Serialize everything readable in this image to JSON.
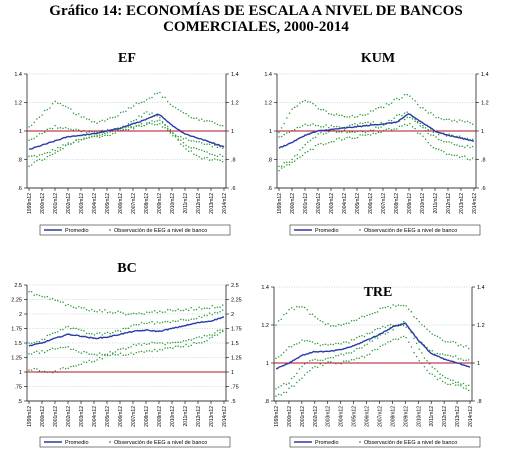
{
  "figure": {
    "title_line1": "Gráfico 14: ECONOMÍAS DE ESCALA A NIVEL DE BANCOS",
    "title_line2": "COMERCIALES, 2000-2014"
  },
  "colors": {
    "average_line": "#2b3aa8",
    "bank_points": "#2e9a3a",
    "reference_line": "#b0102a",
    "grid": "#9fb3c8",
    "axis": "#000000"
  },
  "chart_data": [
    {
      "type": "line",
      "title": "EF",
      "ylim": [
        0.6,
        1.4
      ],
      "y_ticks": [
        0.6,
        0.8,
        1,
        1.2,
        1.4
      ],
      "y_tick_labels": [
        ".6",
        ".8",
        "1",
        "1.2",
        "1.4"
      ],
      "reference_y": 1,
      "x_tick_labels": [
        "1999m12",
        "2000m12",
        "2001m12",
        "2002m12",
        "2003m12",
        "2004m12",
        "2005m12",
        "2006m12",
        "2007m12",
        "2008m12",
        "2009m12",
        "2010m12",
        "2011m12",
        "2012m12",
        "2013m12",
        "2014m12"
      ],
      "legend": [
        "Promedio",
        "Observación de EEG a nivel de banco"
      ],
      "series": [
        {
          "name": "Promedio",
          "values": [
            0.87,
            0.9,
            0.93,
            0.96,
            0.97,
            0.98,
            1.0,
            1.02,
            1.05,
            1.08,
            1.12,
            1.04,
            0.98,
            0.95,
            0.92,
            0.89
          ]
        },
        {
          "name": "Observación de EEG a nivel de banco",
          "values": [
            0.82,
            0.83,
            0.87,
            0.91,
            0.94,
            0.96,
            0.99,
            1.02,
            1.07,
            1.13,
            1.1,
            1.0,
            0.9,
            0.87,
            0.84,
            0.82
          ]
        },
        {
          "name": "Observación de EEG a nivel de banco",
          "values": [
            0.93,
            0.99,
            1.03,
            1.02,
            1.0,
            0.99,
            1.0,
            1.01,
            1.03,
            1.05,
            1.05,
            0.98,
            0.95,
            0.92,
            0.9,
            0.88
          ]
        },
        {
          "name": "Observación de EEG a nivel de banco",
          "values": [
            1.02,
            1.12,
            1.2,
            1.16,
            1.1,
            1.06,
            1.08,
            1.12,
            1.18,
            1.22,
            1.27,
            1.18,
            1.12,
            1.08,
            1.06,
            1.04
          ]
        },
        {
          "name": "Observación de EEG a nivel de banco",
          "values": [
            0.76,
            0.8,
            0.84,
            0.9,
            0.94,
            0.96,
            0.97,
            1.0,
            1.02,
            1.05,
            1.08,
            0.98,
            0.88,
            0.82,
            0.8,
            0.78
          ]
        }
      ]
    },
    {
      "type": "line",
      "title": "KUM",
      "ylim": [
        0.6,
        1.4
      ],
      "y_ticks": [
        0.6,
        0.8,
        1,
        1.2,
        1.4
      ],
      "y_tick_labels": [
        ".6",
        ".8",
        "1",
        "1.2",
        "1.4"
      ],
      "reference_y": 1,
      "x_tick_labels": [
        "1999m12",
        "2000m12",
        "2001m12",
        "2002m12",
        "2003m12",
        "2004m12",
        "2005m12",
        "2006m12",
        "2007m12",
        "2008m12",
        "2009m12",
        "2010m12",
        "2011m12",
        "2012m12",
        "2013m12",
        "2014m12"
      ],
      "legend": [
        "Promedio",
        "Observación de EEG a nivel de banco"
      ],
      "series": [
        {
          "name": "Promedio",
          "values": [
            0.88,
            0.92,
            0.97,
            1.0,
            1.01,
            1.02,
            1.03,
            1.04,
            1.05,
            1.06,
            1.12,
            1.06,
            1.0,
            0.97,
            0.95,
            0.93
          ]
        },
        {
          "name": "Observación de EEG a nivel de banco",
          "values": [
            0.75,
            0.8,
            0.9,
            0.98,
            1.0,
            1.0,
            0.99,
            1.0,
            1.04,
            1.1,
            1.13,
            1.02,
            0.96,
            0.92,
            0.9,
            0.88
          ]
        },
        {
          "name": "Observación de EEG a nivel de banco",
          "values": [
            0.95,
            1.0,
            1.04,
            1.04,
            1.03,
            1.03,
            1.05,
            1.06,
            1.05,
            1.06,
            1.1,
            1.04,
            0.99,
            0.97,
            0.96,
            0.94
          ]
        },
        {
          "name": "Observación de EEG a nivel de banco",
          "values": [
            1.0,
            1.15,
            1.22,
            1.16,
            1.12,
            1.1,
            1.1,
            1.13,
            1.17,
            1.22,
            1.26,
            1.16,
            1.1,
            1.08,
            1.07,
            1.05
          ]
        },
        {
          "name": "Observación de EEG a nivel de banco",
          "values": [
            0.72,
            0.78,
            0.84,
            0.9,
            0.93,
            0.95,
            0.96,
            0.98,
            1.0,
            1.02,
            1.05,
            0.96,
            0.88,
            0.84,
            0.82,
            0.8
          ]
        }
      ]
    },
    {
      "type": "line",
      "title": "BC",
      "ylim": [
        0.5,
        2.5
      ],
      "y_ticks": [
        0.5,
        0.75,
        1,
        1.25,
        1.5,
        1.75,
        2,
        2.25,
        2.5
      ],
      "y_tick_labels": [
        ".5",
        ".75",
        "1",
        "1.25",
        "1.5",
        "1.75",
        "2",
        "2.25",
        "2.5"
      ],
      "reference_y": 1,
      "x_tick_labels": [
        "1999m12",
        "2000m12",
        "2001m12",
        "2002m12",
        "2003m12",
        "2004m12",
        "2005m12",
        "2006m12",
        "2007m12",
        "2008m12",
        "2009m12",
        "2010m12",
        "2011m12",
        "2012m12",
        "2013m12",
        "2014m12"
      ],
      "legend": [
        "Promedio",
        "Observación de EEG a nivel de banco"
      ],
      "series": [
        {
          "name": "Promedio",
          "values": [
            1.45,
            1.5,
            1.58,
            1.65,
            1.62,
            1.58,
            1.6,
            1.65,
            1.7,
            1.72,
            1.7,
            1.75,
            1.8,
            1.85,
            1.88,
            1.95
          ]
        },
        {
          "name": "Observación de EEG a nivel de banco",
          "values": [
            1.05,
            1.02,
            1.0,
            1.08,
            1.15,
            1.2,
            1.28,
            1.3,
            1.32,
            1.35,
            1.38,
            1.42,
            1.45,
            1.5,
            1.58,
            1.7
          ]
        },
        {
          "name": "Observación de EEG a nivel de banco",
          "values": [
            1.5,
            1.55,
            1.7,
            1.78,
            1.7,
            1.65,
            1.66,
            1.72,
            1.8,
            1.85,
            1.85,
            1.88,
            1.9,
            1.95,
            2.0,
            2.05
          ]
        },
        {
          "name": "Observación de EEG a nivel de banco",
          "values": [
            2.38,
            2.3,
            2.25,
            2.15,
            2.1,
            2.05,
            2.05,
            2.02,
            2.0,
            2.02,
            2.05,
            2.05,
            2.08,
            2.1,
            2.12,
            2.15
          ]
        },
        {
          "name": "Observación de EEG a nivel de banco",
          "values": [
            1.32,
            1.35,
            1.4,
            1.42,
            1.35,
            1.3,
            1.32,
            1.38,
            1.45,
            1.5,
            1.48,
            1.5,
            1.55,
            1.6,
            1.65,
            1.75
          ]
        }
      ]
    },
    {
      "type": "line",
      "title": "TRE",
      "ylim": [
        0.8,
        1.4
      ],
      "y_ticks": [
        0.8,
        1,
        1.2,
        1.4
      ],
      "y_tick_labels": [
        ".8",
        "1",
        "1.2",
        "1.4"
      ],
      "reference_y": 1,
      "x_tick_labels": [
        "1999m12",
        "2000m12",
        "2001m12",
        "2002m12",
        "2003m12",
        "2004m12",
        "2005m12",
        "2006m12",
        "2007m12",
        "2008m12",
        "2009m12",
        "2010m12",
        "2011m12",
        "2012m12",
        "2013m12",
        "2014m12"
      ],
      "legend": [
        "Promedio",
        "Observación de EEG a nivel de banco"
      ],
      "series": [
        {
          "name": "Promedio",
          "values": [
            0.97,
            1.0,
            1.04,
            1.06,
            1.06,
            1.07,
            1.09,
            1.12,
            1.15,
            1.19,
            1.21,
            1.12,
            1.05,
            1.02,
            1.0,
            0.98
          ]
        },
        {
          "name": "Observación de EEG a nivel de banco",
          "values": [
            0.86,
            0.9,
            0.98,
            1.02,
            1.02,
            1.04,
            1.06,
            1.1,
            1.14,
            1.18,
            1.22,
            1.08,
            0.98,
            0.93,
            0.9,
            0.88
          ]
        },
        {
          "name": "Observación de EEG a nivel de banco",
          "values": [
            1.02,
            1.08,
            1.12,
            1.1,
            1.09,
            1.1,
            1.12,
            1.15,
            1.18,
            1.2,
            1.2,
            1.12,
            1.06,
            1.04,
            1.03,
            1.01
          ]
        },
        {
          "name": "Observación de EEG a nivel de banco",
          "values": [
            1.2,
            1.28,
            1.3,
            1.24,
            1.2,
            1.2,
            1.22,
            1.25,
            1.28,
            1.3,
            1.3,
            1.22,
            1.16,
            1.12,
            1.1,
            1.08
          ]
        },
        {
          "name": "Observación de EEG a nivel de banco",
          "values": [
            0.82,
            0.86,
            0.92,
            0.98,
            1.0,
            1.0,
            1.02,
            1.04,
            1.08,
            1.12,
            1.14,
            1.02,
            0.94,
            0.9,
            0.88,
            0.86
          ]
        }
      ]
    }
  ]
}
